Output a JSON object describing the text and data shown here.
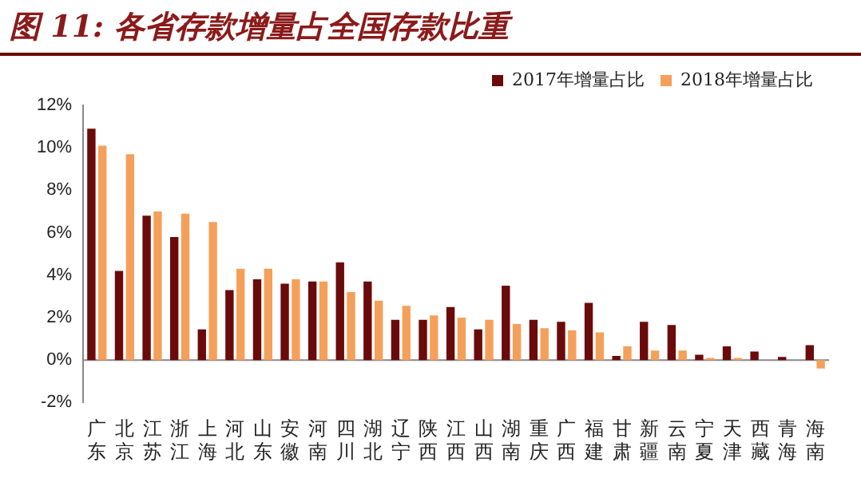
{
  "chart_data": {
    "type": "bar",
    "title": "图 11: 各省存款增量占全国存款比重",
    "categories": [
      "广东",
      "北京",
      "江苏",
      "浙江",
      "上海",
      "河北",
      "山东",
      "安徽",
      "河南",
      "四川",
      "湖北",
      "辽宁",
      "陕西",
      "江西",
      "山西",
      "湖南",
      "重庆",
      "广西",
      "福建",
      "甘肃",
      "新疆",
      "云南",
      "宁夏",
      "天津",
      "西藏",
      "青海",
      "海南"
    ],
    "series": [
      {
        "name": "2017年增量占比",
        "color": "#6b0a0a",
        "values": [
          10.9,
          4.2,
          6.8,
          5.8,
          1.45,
          3.3,
          3.8,
          3.6,
          3.7,
          4.6,
          3.7,
          1.9,
          1.9,
          2.5,
          1.45,
          3.5,
          1.9,
          1.8,
          2.7,
          0.2,
          1.8,
          1.65,
          0.25,
          0.65,
          0.4,
          0.15,
          0.7
        ]
      },
      {
        "name": "2018年增量占比",
        "color": "#f5a05a",
        "values": [
          10.1,
          9.7,
          7.0,
          6.9,
          6.5,
          4.3,
          4.3,
          3.8,
          3.7,
          3.2,
          2.8,
          2.55,
          2.1,
          2.0,
          1.9,
          1.7,
          1.5,
          1.4,
          1.3,
          0.65,
          0.45,
          0.45,
          0.1,
          0.1,
          0,
          0,
          -0.4
        ]
      }
    ],
    "ylim": [
      -2,
      12
    ],
    "yticks": [
      {
        "value": -2,
        "label": "-2%"
      },
      {
        "value": 0,
        "label": "0%"
      },
      {
        "value": 2,
        "label": "2%"
      },
      {
        "value": 4,
        "label": "4%"
      },
      {
        "value": 6,
        "label": "6%"
      },
      {
        "value": 8,
        "label": "8%"
      },
      {
        "value": 10,
        "label": "10%"
      },
      {
        "value": 12,
        "label": "12%"
      }
    ],
    "grid": false,
    "ref_lines": [
      {
        "axis": "y",
        "value": 0,
        "color": "#888888"
      }
    ],
    "legend": "top right"
  }
}
